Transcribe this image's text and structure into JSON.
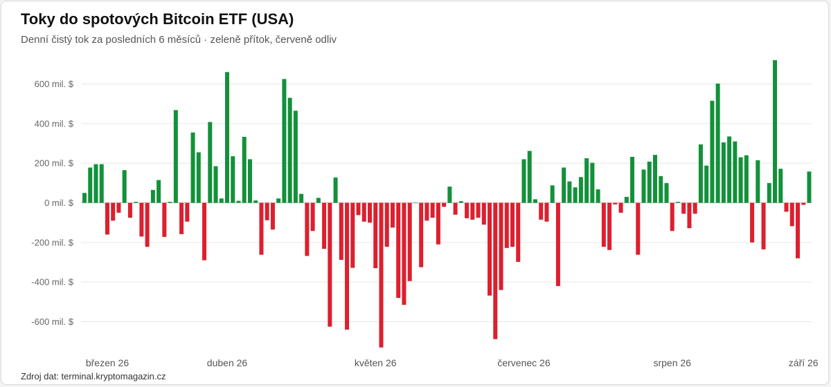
{
  "page": {
    "title": "Toky do spotových Bitcoin ETF (USA)",
    "subtitle": "Denní čistý tok za posledních 6 měsíců · zeleně přítok, červeně odliv",
    "source": "Zdroj dat: terminal.kryptomagazin.cz"
  },
  "colors": {
    "inflow": "#12913a",
    "outflow": "#dd1f2e",
    "grid": "#e6e6e6",
    "zero_line": "#bdbdbd"
  },
  "chart_data": {
    "type": "bar",
    "title": "Toky do spotových Bitcoin ETF (USA)",
    "subtitle": "Denní čistý tok za posledních 6 měsíců · zeleně přítok, červeně odliv",
    "ylim": [
      -760,
      760
    ],
    "yticks": [
      600,
      400,
      200,
      0,
      -200,
      -400,
      -600
    ],
    "ytick_labels": [
      "600 mil. $",
      "400 mil. $",
      "200 mil. $",
      "0 mil. $",
      "-200 mil. $",
      "-400 mil. $",
      "-600 mil. $"
    ],
    "grid": true,
    "month_labels": [
      {
        "label": "březen 26",
        "index": 4
      },
      {
        "label": "duben 26",
        "index": 25
      },
      {
        "label": "květen 26",
        "index": 51
      },
      {
        "label": "červenec 26",
        "index": 77
      },
      {
        "label": "srpen 26",
        "index": 103
      },
      {
        "label": "září 26",
        "index": 126
      }
    ],
    "values": [
      50,
      178,
      195,
      195,
      -160,
      -90,
      -50,
      165,
      -75,
      5,
      -170,
      -222,
      65,
      115,
      -172,
      5,
      468,
      -158,
      -95,
      355,
      255,
      -290,
      408,
      185,
      22,
      660,
      235,
      10,
      333,
      220,
      12,
      -262,
      -88,
      -135,
      22,
      625,
      530,
      465,
      45,
      -268,
      -142,
      25,
      -232,
      -625,
      128,
      -288,
      -640,
      -328,
      -62,
      -95,
      -100,
      -330,
      -730,
      -222,
      -125,
      -480,
      -515,
      -395,
      0,
      -325,
      -90,
      -75,
      -210,
      -20,
      82,
      -60,
      8,
      -78,
      -85,
      -75,
      -110,
      -468,
      -688,
      -440,
      -228,
      -222,
      -298,
      220,
      262,
      18,
      -85,
      -95,
      88,
      -420,
      178,
      108,
      78,
      130,
      225,
      202,
      68,
      -222,
      -238,
      -8,
      -50,
      30,
      232,
      -262,
      168,
      208,
      242,
      135,
      100,
      -142,
      5,
      -55,
      -128,
      -55,
      295,
      188,
      515,
      602,
      305,
      335,
      310,
      230,
      240,
      -200,
      215,
      -235,
      100,
      720,
      172,
      -45,
      -118,
      -280,
      -10,
      158
    ]
  }
}
